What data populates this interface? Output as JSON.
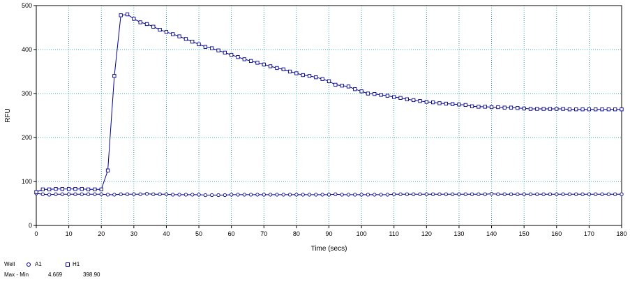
{
  "chart_data": {
    "type": "line",
    "title": "",
    "xlabel": "Time (secs)",
    "ylabel": "RFU",
    "xlim": [
      0,
      180
    ],
    "ylim": [
      0,
      500
    ],
    "x_ticks": [
      0,
      10,
      20,
      30,
      40,
      50,
      60,
      70,
      80,
      90,
      100,
      110,
      120,
      130,
      140,
      150,
      160,
      170,
      180
    ],
    "y_ticks": [
      0,
      100,
      200,
      300,
      400,
      500
    ],
    "grid": true,
    "colors": {
      "series": "#00008b",
      "grid": "#008b8b",
      "axis": "#000000"
    },
    "series": [
      {
        "name": "A1",
        "marker": "circle",
        "x": [
          0,
          2,
          4,
          6,
          8,
          10,
          12,
          14,
          16,
          18,
          20,
          22,
          24,
          26,
          28,
          30,
          32,
          34,
          36,
          38,
          40,
          42,
          44,
          46,
          48,
          50,
          52,
          54,
          56,
          58,
          60,
          62,
          64,
          66,
          68,
          70,
          72,
          74,
          76,
          78,
          80,
          82,
          84,
          86,
          88,
          90,
          92,
          94,
          96,
          98,
          100,
          102,
          104,
          106,
          108,
          110,
          112,
          114,
          116,
          118,
          120,
          122,
          124,
          126,
          128,
          130,
          132,
          134,
          136,
          138,
          140,
          142,
          144,
          146,
          148,
          150,
          152,
          154,
          156,
          158,
          160,
          162,
          164,
          166,
          168,
          170,
          172,
          174,
          176,
          178,
          180
        ],
        "y": [
          73,
          71,
          70,
          71,
          71,
          71,
          71,
          71,
          71,
          71,
          71,
          70,
          70,
          71,
          71,
          71,
          71,
          72,
          71,
          71,
          71,
          70,
          70,
          70,
          70,
          70,
          69,
          69,
          69,
          69,
          70,
          70,
          70,
          70,
          70,
          70,
          70,
          70,
          70,
          70,
          70,
          70,
          70,
          70,
          70,
          70,
          71,
          70,
          70,
          70,
          70,
          70,
          70,
          70,
          70,
          71,
          71,
          71,
          71,
          71,
          71,
          71,
          71,
          71,
          71,
          71,
          71,
          71,
          71,
          71,
          72,
          71,
          71,
          71,
          71,
          71,
          71,
          71,
          71,
          71,
          71,
          71,
          71,
          71,
          71,
          71,
          71,
          71,
          71,
          71,
          71
        ]
      },
      {
        "name": "H1",
        "marker": "square",
        "x": [
          0,
          2,
          4,
          6,
          8,
          10,
          12,
          14,
          16,
          18,
          20,
          22,
          24,
          26,
          28,
          30,
          32,
          34,
          36,
          38,
          40,
          42,
          44,
          46,
          48,
          50,
          52,
          54,
          56,
          58,
          60,
          62,
          64,
          66,
          68,
          70,
          72,
          74,
          76,
          78,
          80,
          82,
          84,
          86,
          88,
          90,
          92,
          94,
          96,
          98,
          100,
          102,
          104,
          106,
          108,
          110,
          112,
          114,
          116,
          118,
          120,
          122,
          124,
          126,
          128,
          130,
          132,
          134,
          136,
          138,
          140,
          142,
          144,
          146,
          148,
          150,
          152,
          154,
          156,
          158,
          160,
          162,
          164,
          166,
          168,
          170,
          172,
          174,
          176,
          178,
          180
        ],
        "y": [
          76,
          82,
          82,
          83,
          83,
          83,
          83,
          83,
          82,
          82,
          82,
          125,
          340,
          478,
          480,
          470,
          462,
          458,
          452,
          445,
          440,
          435,
          430,
          424,
          418,
          412,
          406,
          403,
          398,
          393,
          388,
          383,
          378,
          374,
          370,
          366,
          362,
          358,
          355,
          350,
          346,
          342,
          340,
          337,
          333,
          328,
          320,
          318,
          316,
          310,
          305,
          300,
          299,
          297,
          295,
          292,
          290,
          287,
          285,
          283,
          281,
          280,
          278,
          277,
          276,
          275,
          274,
          271,
          270,
          270,
          269,
          269,
          268,
          268,
          267,
          266,
          265,
          265,
          265,
          265,
          265,
          265,
          264,
          264,
          264,
          264,
          264,
          264,
          264,
          264,
          264
        ]
      }
    ]
  },
  "legend": {
    "well_label": "Well",
    "maxmin_label": "Max - Min",
    "entries": [
      {
        "name": "A1",
        "marker": "circle",
        "value": "4.669"
      },
      {
        "name": "H1",
        "marker": "square",
        "value": "398.90"
      }
    ]
  }
}
